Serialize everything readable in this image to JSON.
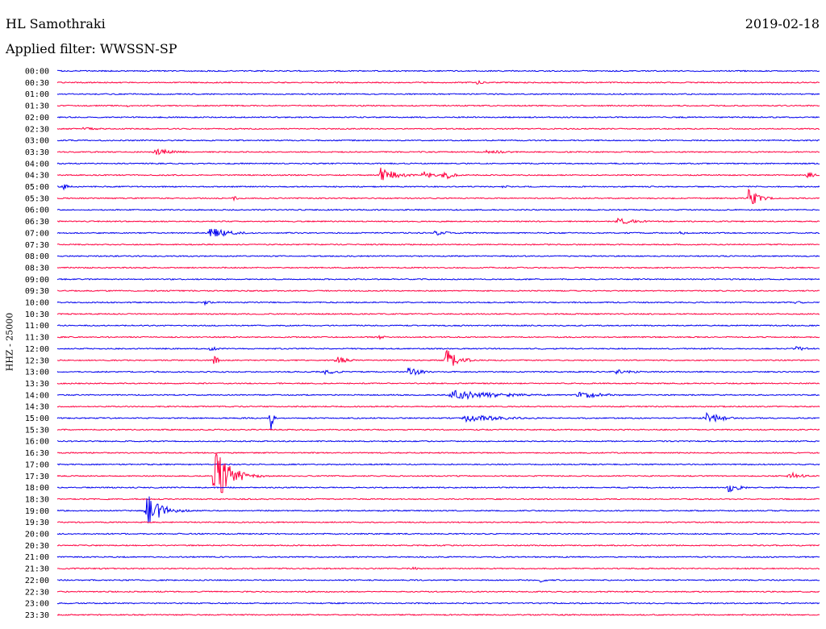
{
  "header": {
    "station": "HL Samothraki",
    "date": "2019-02-18",
    "filter": "Applied filter: WWSSN-SP"
  },
  "chart_data": {
    "type": "line",
    "title": "HL Samothraki",
    "subtitle": "Applied filter: WWSSN-SP",
    "ylabel": "HHZ - 25000",
    "xlabel": "",
    "grid": false,
    "row_interval_minutes": 30,
    "row_labels": [
      "00:00",
      "00:30",
      "01:00",
      "01:30",
      "02:00",
      "02:30",
      "03:00",
      "03:30",
      "04:00",
      "04:30",
      "05:00",
      "05:30",
      "06:00",
      "06:30",
      "07:00",
      "07:30",
      "08:00",
      "08:30",
      "09:00",
      "09:30",
      "10:00",
      "10:30",
      "11:00",
      "11:30",
      "12:00",
      "12:30",
      "13:00",
      "13:30",
      "14:00",
      "14:30",
      "15:00",
      "15:30",
      "16:00",
      "16:30",
      "17:00",
      "17:30",
      "18:00",
      "18:30",
      "19:00",
      "19:30",
      "20:00",
      "20:30",
      "21:00",
      "21:30",
      "22:00",
      "22:30",
      "23:00",
      "23:30"
    ],
    "colors": {
      "even_rows": "#0000ee",
      "odd_rows": "#ff0040",
      "text": "#000000"
    },
    "events": [
      {
        "row": 1,
        "minute": 16.5,
        "amp": 0.18,
        "dur": 1.0
      },
      {
        "row": 3,
        "minute": 2.7,
        "amp": 0.12,
        "dur": 0.6
      },
      {
        "row": 5,
        "minute": 1.0,
        "amp": 0.12,
        "dur": 2.0
      },
      {
        "row": 7,
        "minute": 3.8,
        "amp": 0.35,
        "dur": 1.4
      },
      {
        "row": 7,
        "minute": 16.8,
        "amp": 0.15,
        "dur": 2.5
      },
      {
        "row": 9,
        "minute": 12.7,
        "amp": 0.7,
        "dur": 1.1
      },
      {
        "row": 9,
        "minute": 14.4,
        "amp": 0.55,
        "dur": 0.6
      },
      {
        "row": 9,
        "minute": 15.2,
        "amp": 0.55,
        "dur": 0.6
      },
      {
        "row": 9,
        "minute": 29.5,
        "amp": 0.35,
        "dur": 0.5
      },
      {
        "row": 10,
        "minute": 0.2,
        "amp": 0.3,
        "dur": 0.5
      },
      {
        "row": 10,
        "minute": 17.5,
        "amp": 0.15,
        "dur": 0.5
      },
      {
        "row": 11,
        "minute": 6.9,
        "amp": 0.25,
        "dur": 0.4
      },
      {
        "row": 11,
        "minute": 27.2,
        "amp": 0.85,
        "dur": 0.7
      },
      {
        "row": 13,
        "minute": 22.0,
        "amp": 0.3,
        "dur": 1.5
      },
      {
        "row": 14,
        "minute": 6.0,
        "amp": 0.55,
        "dur": 1.4
      },
      {
        "row": 14,
        "minute": 14.8,
        "amp": 0.25,
        "dur": 1.2
      },
      {
        "row": 14,
        "minute": 24.5,
        "amp": 0.15,
        "dur": 0.8
      },
      {
        "row": 20,
        "minute": 5.8,
        "amp": 0.25,
        "dur": 0.4
      },
      {
        "row": 20,
        "minute": 29.0,
        "amp": 0.12,
        "dur": 1.2
      },
      {
        "row": 23,
        "minute": 12.6,
        "amp": 0.25,
        "dur": 0.5
      },
      {
        "row": 24,
        "minute": 6.0,
        "amp": 0.18,
        "dur": 1.0
      },
      {
        "row": 24,
        "minute": 29.0,
        "amp": 0.25,
        "dur": 1.0
      },
      {
        "row": 25,
        "minute": 6.1,
        "amp": 0.55,
        "dur": 0.4
      },
      {
        "row": 25,
        "minute": 11.0,
        "amp": 0.35,
        "dur": 0.8
      },
      {
        "row": 25,
        "minute": 15.3,
        "amp": 1.1,
        "dur": 0.8
      },
      {
        "row": 26,
        "minute": 10.5,
        "amp": 0.25,
        "dur": 1.0
      },
      {
        "row": 26,
        "minute": 13.8,
        "amp": 0.45,
        "dur": 1.0
      },
      {
        "row": 26,
        "minute": 22.0,
        "amp": 0.25,
        "dur": 1.2
      },
      {
        "row": 28,
        "minute": 15.5,
        "amp": 0.45,
        "dur": 3.5
      },
      {
        "row": 28,
        "minute": 20.5,
        "amp": 0.35,
        "dur": 1.8
      },
      {
        "row": 30,
        "minute": 8.4,
        "amp": 1.3,
        "dur": 0.15
      },
      {
        "row": 30,
        "minute": 16.0,
        "amp": 0.35,
        "dur": 3.0
      },
      {
        "row": 30,
        "minute": 25.5,
        "amp": 0.55,
        "dur": 1.2
      },
      {
        "row": 35,
        "minute": 6.2,
        "amp": 3.0,
        "dur": 1.0
      },
      {
        "row": 35,
        "minute": 28.8,
        "amp": 0.45,
        "dur": 0.8
      },
      {
        "row": 36,
        "minute": 26.4,
        "amp": 0.45,
        "dur": 0.8
      },
      {
        "row": 38,
        "minute": 3.5,
        "amp": 1.6,
        "dur": 1.0
      },
      {
        "row": 43,
        "minute": 14.0,
        "amp": 0.15,
        "dur": 0.8
      },
      {
        "row": 44,
        "minute": 19.0,
        "amp": 0.2,
        "dur": 0.5
      }
    ]
  }
}
